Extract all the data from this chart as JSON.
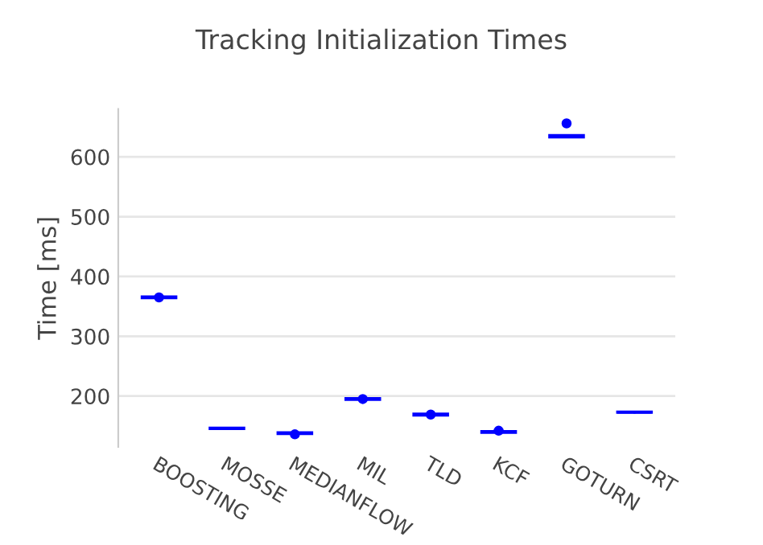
{
  "chart_data": {
    "type": "box",
    "title": "Tracking Initialization Times",
    "ylabel": "Time [ms]",
    "categories": [
      "BOOSTING",
      "MOSSE",
      "MEDIANFLOW",
      "MIL",
      "TLD",
      "KCF",
      "GOTURN",
      "CSRT"
    ],
    "color": "#0000ff",
    "boxes": [
      {
        "low": 364,
        "q1": 364,
        "median": 365,
        "q3": 366,
        "high": 366,
        "outliers": [
          365
        ]
      },
      {
        "low": 145.5,
        "q1": 145.5,
        "median": 146,
        "q3": 146.5,
        "high": 146.5
      },
      {
        "low": 137,
        "q1": 137,
        "median": 138,
        "q3": 139,
        "high": 139,
        "outliers": [
          136
        ]
      },
      {
        "low": 194,
        "q1": 194,
        "median": 195,
        "q3": 196,
        "high": 196,
        "outliers": [
          195
        ]
      },
      {
        "low": 168,
        "q1": 168,
        "median": 169,
        "q3": 170,
        "high": 170,
        "outliers": [
          169
        ]
      },
      {
        "low": 139,
        "q1": 139,
        "median": 140,
        "q3": 141,
        "high": 141,
        "outliers": [
          142
        ]
      },
      {
        "low": 633,
        "q1": 633,
        "median": 634,
        "q3": 636,
        "high": 636,
        "outliers": [
          656
        ]
      },
      {
        "low": 172.5,
        "q1": 172.5,
        "median": 173,
        "q3": 173.5,
        "high": 173.5
      }
    ],
    "ylim": [
      115,
      680
    ],
    "yticks": [
      200,
      300,
      400,
      500,
      600
    ],
    "grid": "y"
  }
}
